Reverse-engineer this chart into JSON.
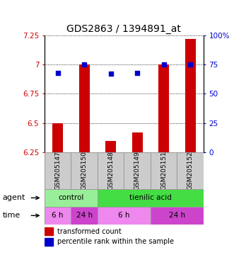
{
  "title": "GDS2863 / 1394891_at",
  "samples": [
    "GSM205147",
    "GSM205150",
    "GSM205148",
    "GSM205149",
    "GSM205151",
    "GSM205152"
  ],
  "bar_values": [
    6.5,
    7.0,
    6.35,
    6.42,
    7.0,
    7.22
  ],
  "bar_bottom": 6.25,
  "percentile_values": [
    68,
    75,
    67,
    68,
    75,
    75
  ],
  "percentile_min": 0,
  "percentile_max": 100,
  "ylim": [
    6.25,
    7.25
  ],
  "y_ticks": [
    6.25,
    6.5,
    6.75,
    7.0,
    7.25
  ],
  "y_tick_labels": [
    "6.25",
    "6.5",
    "6.75",
    "7",
    "7.25"
  ],
  "right_ticks": [
    0,
    25,
    50,
    75,
    100
  ],
  "right_tick_labels": [
    "0",
    "25",
    "50",
    "75",
    "100%"
  ],
  "bar_color": "#cc0000",
  "dot_color": "#0000cc",
  "grid_color": "#000000",
  "agent_row": [
    {
      "label": "control",
      "start": 0,
      "end": 2,
      "color": "#99ee99"
    },
    {
      "label": "tienilic acid",
      "start": 2,
      "end": 6,
      "color": "#44dd44"
    }
  ],
  "time_row": [
    {
      "label": "6 h",
      "start": 0,
      "end": 1,
      "color": "#ee88ee"
    },
    {
      "label": "24 h",
      "start": 1,
      "end": 2,
      "color": "#cc44cc"
    },
    {
      "label": "6 h",
      "start": 2,
      "end": 4,
      "color": "#ee88ee"
    },
    {
      "label": "24 h",
      "start": 4,
      "end": 6,
      "color": "#cc44cc"
    }
  ],
  "legend_red_label": "transformed count",
  "legend_blue_label": "percentile rank within the sample",
  "left_label_color": "#cc0000",
  "right_label_color": "#0000cc",
  "title_fontsize": 10,
  "tick_fontsize": 7.5,
  "sample_fontsize": 6.5,
  "row_fontsize": 7.5,
  "legend_fontsize": 7,
  "side_label_fontsize": 8,
  "sample_bg_color": "#cccccc",
  "sample_border_color": "#999999",
  "bar_width": 0.4,
  "dot_size": 22
}
